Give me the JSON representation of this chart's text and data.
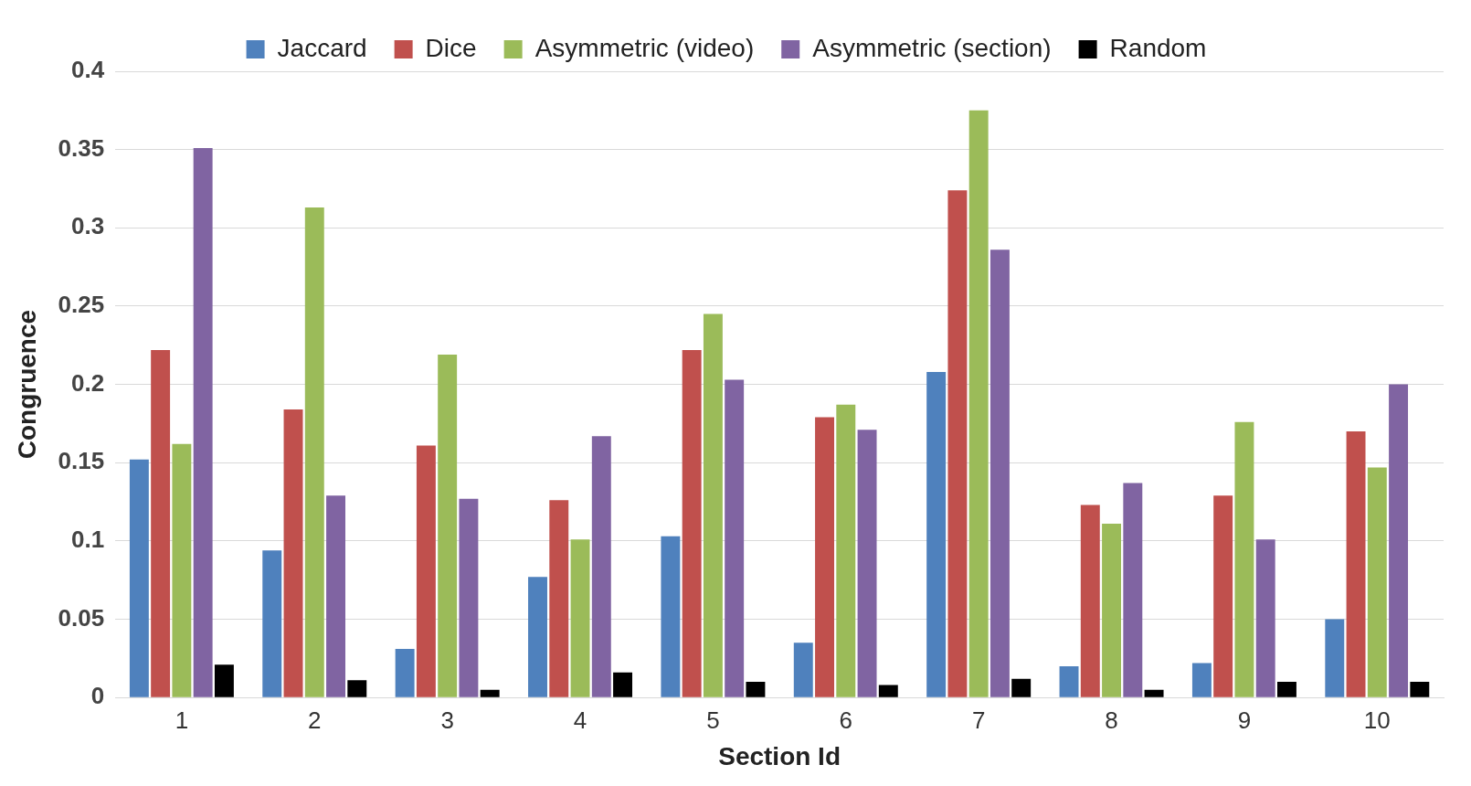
{
  "chart_data": {
    "type": "bar",
    "xlabel": "Section Id",
    "ylabel": "Congruence",
    "categories": [
      "1",
      "2",
      "3",
      "4",
      "5",
      "6",
      "7",
      "8",
      "9",
      "10"
    ],
    "series": [
      {
        "name": "Jaccard",
        "color": "#4f81bd",
        "values": [
          0.152,
          0.094,
          0.031,
          0.077,
          0.103,
          0.035,
          0.208,
          0.02,
          0.022,
          0.05
        ]
      },
      {
        "name": "Dice",
        "color": "#c0504d",
        "values": [
          0.222,
          0.184,
          0.161,
          0.126,
          0.222,
          0.179,
          0.324,
          0.123,
          0.129,
          0.17
        ]
      },
      {
        "name": "Asymmetric (video)",
        "color": "#9bbb59",
        "values": [
          0.162,
          0.313,
          0.219,
          0.101,
          0.245,
          0.187,
          0.375,
          0.111,
          0.176,
          0.147
        ]
      },
      {
        "name": "Asymmetric (section)",
        "color": "#8064a2",
        "values": [
          0.351,
          0.129,
          0.127,
          0.167,
          0.203,
          0.171,
          0.286,
          0.137,
          0.101,
          0.2
        ]
      },
      {
        "name": "Random",
        "color": "#000000",
        "values": [
          0.021,
          0.011,
          0.005,
          0.016,
          0.01,
          0.008,
          0.012,
          0.005,
          0.01,
          0.01
        ]
      }
    ],
    "ylim": [
      0,
      0.4
    ],
    "yticks": [
      0,
      0.05,
      0.1,
      0.15,
      0.2,
      0.25,
      0.3,
      0.35,
      0.4
    ],
    "grid": "y",
    "legend": "top"
  }
}
